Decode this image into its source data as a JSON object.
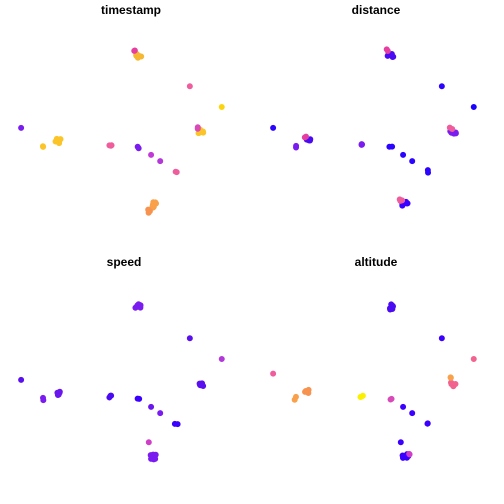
{
  "chart_data": {
    "type": "scatter",
    "layout": "2x2 facet grid",
    "axes_visible": false,
    "grid": false,
    "legend": "none",
    "colormap": [
      "#0d0887",
      "#3b00ff",
      "#7a1cf0",
      "#d03ec8",
      "#f2638f",
      "#f9a04a",
      "#fbd40e"
    ],
    "panels": [
      {
        "title": "timestamp",
        "clusters": [
          {
            "x": 0.555,
            "y": 0.87,
            "n": 6,
            "color": "#f6b732"
          },
          {
            "x": 0.54,
            "y": 0.89,
            "n": 2,
            "color": "#e63ea0"
          },
          {
            "x": 0.78,
            "y": 0.72,
            "n": 1,
            "color": "#ef5d9c"
          },
          {
            "x": 0.92,
            "y": 0.62,
            "n": 1,
            "color": "#fbd40e"
          },
          {
            "x": 0.04,
            "y": 0.52,
            "n": 1,
            "color": "#7a1cf0"
          },
          {
            "x": 0.2,
            "y": 0.46,
            "n": 6,
            "color": "#fbc52a"
          },
          {
            "x": 0.14,
            "y": 0.43,
            "n": 2,
            "color": "#fbc52a"
          },
          {
            "x": 0.43,
            "y": 0.44,
            "n": 3,
            "color": "#ef5d9c"
          },
          {
            "x": 0.555,
            "y": 0.43,
            "n": 2,
            "color": "#7a1cf0"
          },
          {
            "x": 0.61,
            "y": 0.39,
            "n": 1,
            "color": "#c23ad6"
          },
          {
            "x": 0.65,
            "y": 0.36,
            "n": 1,
            "color": "#b238d8"
          },
          {
            "x": 0.72,
            "y": 0.31,
            "n": 2,
            "color": "#ef5d9c"
          },
          {
            "x": 0.83,
            "y": 0.5,
            "n": 6,
            "color": "#fbc52a"
          },
          {
            "x": 0.815,
            "y": 0.52,
            "n": 2,
            "color": "#d84ab8"
          },
          {
            "x": 0.62,
            "y": 0.15,
            "n": 7,
            "color": "#f9a04a"
          },
          {
            "x": 0.6,
            "y": 0.12,
            "n": 3,
            "color": "#f7934f"
          }
        ]
      },
      {
        "title": "distance",
        "clusters": [
          {
            "x": 0.555,
            "y": 0.87,
            "n": 6,
            "color": "#4a0bf2"
          },
          {
            "x": 0.54,
            "y": 0.89,
            "n": 2,
            "color": "#e63ea0"
          },
          {
            "x": 0.78,
            "y": 0.72,
            "n": 1,
            "color": "#2b05ff"
          },
          {
            "x": 0.92,
            "y": 0.62,
            "n": 1,
            "color": "#1a03ff"
          },
          {
            "x": 0.04,
            "y": 0.52,
            "n": 1,
            "color": "#2b05ff"
          },
          {
            "x": 0.2,
            "y": 0.46,
            "n": 4,
            "color": "#4a0bf2"
          },
          {
            "x": 0.18,
            "y": 0.48,
            "n": 2,
            "color": "#e63ea0"
          },
          {
            "x": 0.14,
            "y": 0.43,
            "n": 2,
            "color": "#7a1cf0"
          },
          {
            "x": 0.43,
            "y": 0.44,
            "n": 3,
            "color": "#7a1cf0"
          },
          {
            "x": 0.555,
            "y": 0.43,
            "n": 2,
            "color": "#2b05ff"
          },
          {
            "x": 0.61,
            "y": 0.39,
            "n": 1,
            "color": "#2b05ff"
          },
          {
            "x": 0.65,
            "y": 0.36,
            "n": 1,
            "color": "#2b05ff"
          },
          {
            "x": 0.72,
            "y": 0.31,
            "n": 2,
            "color": "#2b05ff"
          },
          {
            "x": 0.83,
            "y": 0.5,
            "n": 6,
            "color": "#7a1cf0"
          },
          {
            "x": 0.82,
            "y": 0.52,
            "n": 2,
            "color": "#ef5d9c"
          },
          {
            "x": 0.62,
            "y": 0.15,
            "n": 7,
            "color": "#3b00ff"
          },
          {
            "x": 0.6,
            "y": 0.17,
            "n": 3,
            "color": "#ef5d9c"
          }
        ]
      },
      {
        "title": "speed",
        "clusters": [
          {
            "x": 0.555,
            "y": 0.87,
            "n": 6,
            "color": "#7a1cf0"
          },
          {
            "x": 0.78,
            "y": 0.72,
            "n": 1,
            "color": "#5a10ee"
          },
          {
            "x": 0.92,
            "y": 0.62,
            "n": 1,
            "color": "#b238d8"
          },
          {
            "x": 0.04,
            "y": 0.52,
            "n": 1,
            "color": "#5a10ee"
          },
          {
            "x": 0.2,
            "y": 0.46,
            "n": 5,
            "color": "#6a16ee"
          },
          {
            "x": 0.14,
            "y": 0.43,
            "n": 2,
            "color": "#7a1cf0"
          },
          {
            "x": 0.43,
            "y": 0.44,
            "n": 3,
            "color": "#4a0bf2"
          },
          {
            "x": 0.555,
            "y": 0.43,
            "n": 2,
            "color": "#3b00ff"
          },
          {
            "x": 0.61,
            "y": 0.39,
            "n": 1,
            "color": "#6a16ee"
          },
          {
            "x": 0.65,
            "y": 0.36,
            "n": 1,
            "color": "#7a1cf0"
          },
          {
            "x": 0.72,
            "y": 0.31,
            "n": 2,
            "color": "#3b00ff"
          },
          {
            "x": 0.83,
            "y": 0.5,
            "n": 7,
            "color": "#5a10ee"
          },
          {
            "x": 0.62,
            "y": 0.15,
            "n": 8,
            "color": "#7a1cf0"
          },
          {
            "x": 0.6,
            "y": 0.22,
            "n": 1,
            "color": "#d03ec8"
          }
        ]
      },
      {
        "title": "altitude",
        "clusters": [
          {
            "x": 0.555,
            "y": 0.87,
            "n": 6,
            "color": "#4a0bf2"
          },
          {
            "x": 0.78,
            "y": 0.72,
            "n": 1,
            "color": "#3b00ff"
          },
          {
            "x": 0.92,
            "y": 0.62,
            "n": 1,
            "color": "#f2638f"
          },
          {
            "x": 0.04,
            "y": 0.55,
            "n": 1,
            "color": "#ef5d9c"
          },
          {
            "x": 0.19,
            "y": 0.46,
            "n": 4,
            "color": "#f7934f"
          },
          {
            "x": 0.14,
            "y": 0.43,
            "n": 2,
            "color": "#f9a04a"
          },
          {
            "x": 0.43,
            "y": 0.44,
            "n": 3,
            "color": "#fbf000"
          },
          {
            "x": 0.555,
            "y": 0.43,
            "n": 2,
            "color": "#d84ab8"
          },
          {
            "x": 0.61,
            "y": 0.39,
            "n": 1,
            "color": "#3b00ff"
          },
          {
            "x": 0.65,
            "y": 0.36,
            "n": 1,
            "color": "#3b00ff"
          },
          {
            "x": 0.72,
            "y": 0.31,
            "n": 2,
            "color": "#3b00ff"
          },
          {
            "x": 0.83,
            "y": 0.5,
            "n": 6,
            "color": "#f2638f"
          },
          {
            "x": 0.82,
            "y": 0.53,
            "n": 2,
            "color": "#f9a04a"
          },
          {
            "x": 0.62,
            "y": 0.15,
            "n": 7,
            "color": "#3b00ff"
          },
          {
            "x": 0.6,
            "y": 0.22,
            "n": 1,
            "color": "#3b00ff"
          },
          {
            "x": 0.64,
            "y": 0.16,
            "n": 2,
            "color": "#d03ec8"
          }
        ]
      }
    ]
  }
}
